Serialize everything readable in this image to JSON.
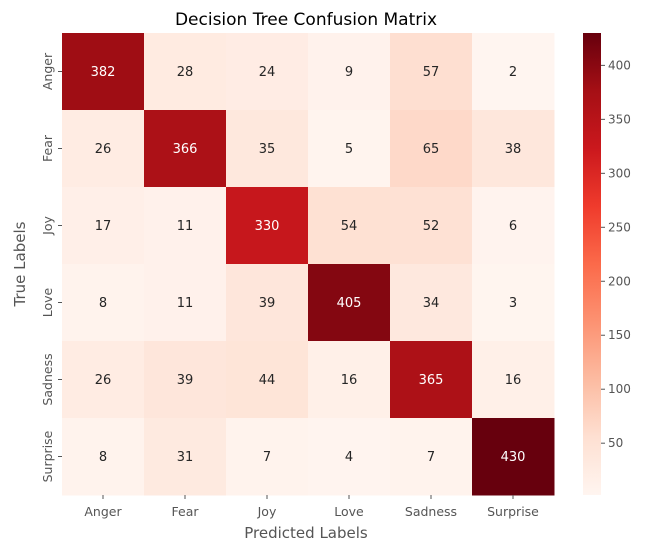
{
  "chart_data": {
    "type": "heatmap",
    "title": "Decision Tree Confusion Matrix",
    "xlabel": "Predicted Labels",
    "ylabel": "True Labels",
    "x_categories": [
      "Anger",
      "Fear",
      "Joy",
      "Love",
      "Sadness",
      "Surprise"
    ],
    "y_categories": [
      "Anger",
      "Fear",
      "Joy",
      "Love",
      "Sadness",
      "Surprise"
    ],
    "values": [
      [
        382,
        28,
        24,
        9,
        57,
        2
      ],
      [
        26,
        366,
        35,
        5,
        65,
        38
      ],
      [
        17,
        11,
        330,
        54,
        52,
        6
      ],
      [
        8,
        11,
        39,
        405,
        34,
        3
      ],
      [
        26,
        39,
        44,
        16,
        365,
        16
      ],
      [
        8,
        31,
        7,
        4,
        7,
        430
      ]
    ],
    "colormap": "Reds",
    "colorbar": {
      "min": 2,
      "max": 430,
      "ticks": [
        50,
        100,
        150,
        200,
        250,
        300,
        350,
        400
      ]
    }
  }
}
